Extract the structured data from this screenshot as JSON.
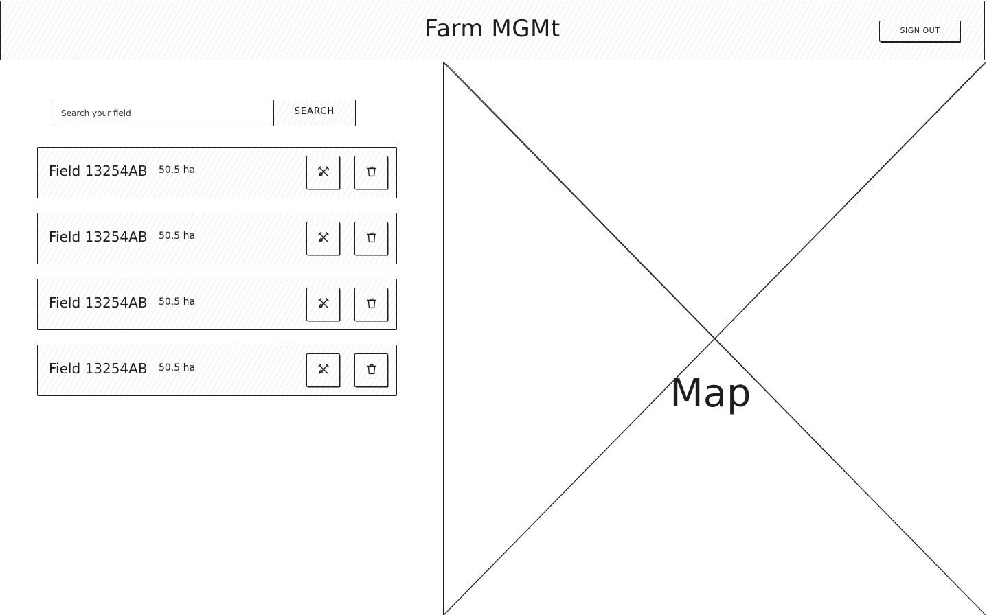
{
  "header": {
    "title": "Farm MGMt",
    "sign_out_label": "SIGN OUT"
  },
  "search": {
    "placeholder": "Search your field",
    "value": "",
    "button_label": "SEARCH"
  },
  "fields": [
    {
      "name": "Field 13254AB",
      "area": "50.5 ha"
    },
    {
      "name": "Field 13254AB",
      "area": "50.5 ha"
    },
    {
      "name": "Field 13254AB",
      "area": "50.5 ha"
    },
    {
      "name": "Field 13254AB",
      "area": "50.5 ha"
    }
  ],
  "icons": {
    "edit": "edit-tools-icon",
    "delete": "trash-icon"
  },
  "map": {
    "label": "Map"
  }
}
